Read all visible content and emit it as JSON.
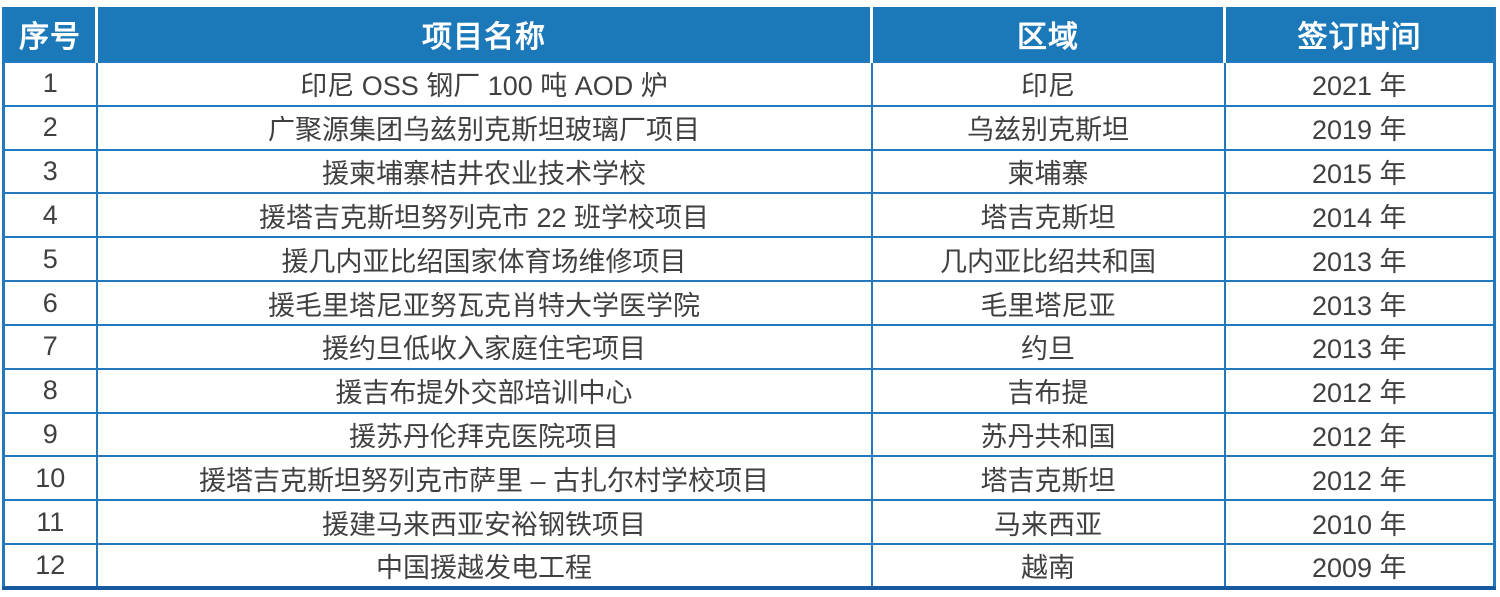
{
  "chart_data": {
    "type": "table",
    "columns": [
      "序号",
      "项目名称",
      "区域",
      "签订时间"
    ],
    "rows": [
      [
        "1",
        "印尼 OSS 钢厂 100 吨 AOD 炉",
        "印尼",
        "2021 年"
      ],
      [
        "2",
        "广聚源集团乌兹别克斯坦玻璃厂项目",
        "乌兹别克斯坦",
        "2019 年"
      ],
      [
        "3",
        "援柬埔寨桔井农业技术学校",
        "柬埔寨",
        "2015 年"
      ],
      [
        "4",
        "援塔吉克斯坦努列克市 22 班学校项目",
        "塔吉克斯坦",
        "2014 年"
      ],
      [
        "5",
        "援几内亚比绍国家体育场维修项目",
        "几内亚比绍共和国",
        "2013 年"
      ],
      [
        "6",
        "援毛里塔尼亚努瓦克肖特大学医学院",
        "毛里塔尼亚",
        "2013 年"
      ],
      [
        "7",
        "援约旦低收入家庭住宅项目",
        "约旦",
        "2013 年"
      ],
      [
        "8",
        "援吉布提外交部培训中心",
        "吉布提",
        "2012 年"
      ],
      [
        "9",
        "援苏丹伦拜克医院项目",
        "苏丹共和国",
        "2012 年"
      ],
      [
        "10",
        "援塔吉克斯坦努列克市萨里 – 古扎尔村学校项目",
        "塔吉克斯坦",
        "2012 年"
      ],
      [
        "11",
        "援建马来西亚安裕钢铁项目",
        "马来西亚",
        "2010 年"
      ],
      [
        "12",
        "中国援越发电工程",
        "越南",
        "2009 年"
      ]
    ],
    "column_keys": [
      "index",
      "name",
      "region",
      "time"
    ],
    "title": "",
    "legend": "off",
    "grid": "table-borders"
  },
  "colors": {
    "header_bg": "#1b78b9",
    "border": "#2379bd",
    "bottom_border": "#17599e",
    "cell_text": "#404040",
    "header_text": "#ffffff",
    "cell_bg": "#ffffff"
  }
}
